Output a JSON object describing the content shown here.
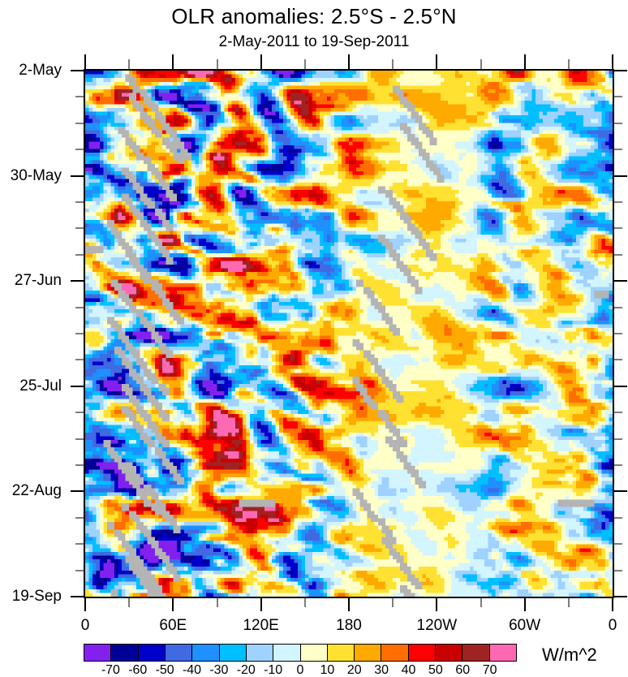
{
  "title": "OLR anomalies: 2.5°S - 2.5°N",
  "subtitle": "2-May-2011 to 19-Sep-2011",
  "chart_data": {
    "type": "heatmap",
    "subtype": "hovmoller-time-longitude-raster",
    "title": "OLR anomalies: 2.5°S - 2.5°N",
    "subtitle": "2-May-2011 to 19-Sep-2011",
    "x_axis": {
      "kind": "longitude",
      "tick_labels": [
        "0",
        "60E",
        "120E",
        "180",
        "120W",
        "60W",
        "0"
      ],
      "tick_degrees": [
        0,
        60,
        120,
        180,
        240,
        300,
        360
      ],
      "minor_step_deg": 30,
      "range_deg": [
        0,
        360
      ]
    },
    "y_axis": {
      "kind": "time",
      "tick_labels": [
        "2-May",
        "30-May",
        "27-Jun",
        "25-Jul",
        "22-Aug",
        "19-Sep"
      ],
      "tick_days": [
        0,
        28,
        56,
        84,
        112,
        140
      ],
      "minor_step_days": 7,
      "range_days": [
        0,
        140
      ],
      "direction": "time increases downward"
    },
    "colorbar": {
      "unit": "W/m^2",
      "levels": [
        -70,
        -60,
        -50,
        -40,
        -30,
        -20,
        -10,
        0,
        10,
        20,
        30,
        40,
        50,
        60,
        70
      ],
      "colors": [
        "#8220F0",
        "#000096",
        "#0000CD",
        "#4169E1",
        "#1E90FF",
        "#00BFFF",
        "#A0D2FF",
        "#D2F5FF",
        "#FFFFC8",
        "#FFE132",
        "#FFAA00",
        "#FF6E00",
        "#FF0000",
        "#C80000",
        "#A02323",
        "#FF69B4"
      ]
    },
    "description": "Time-longitude (Hovmoller) raster of equatorial OLR anomalies at 2.5 deg x 1 day resolution. Strong alternating negative (blue/purple, enhanced convection) and positive (orange/red/brown) anomalies over the Indian Ocean and western Pacific (0-180E); weak, mostly faint positive anomalies over the central/eastern Pacific (180-100W); a persistent active band near 60W; diagonal gray staircase streaks mark missing satellite swath data.",
    "field": {
      "grid": {
        "nx": 144,
        "nt": 141,
        "lon_step_deg": 2.5,
        "time_step_days": 1
      },
      "seed": 7,
      "octaves": [
        {
          "sx": 9,
          "st": 6.5,
          "amp": 1.1
        },
        {
          "sx": 6,
          "st": 3.2,
          "amp": 0.55
        },
        {
          "sx": 3,
          "st": 1.6,
          "amp": 0.3
        }
      ],
      "drift_cells_per_day": 0.5,
      "amplitude_envelope": [
        [
          0,
          55
        ],
        [
          20,
          62
        ],
        [
          50,
          72
        ],
        [
          90,
          72
        ],
        [
          120,
          62
        ],
        [
          150,
          55
        ],
        [
          180,
          38
        ],
        [
          205,
          20
        ],
        [
          235,
          16
        ],
        [
          260,
          20
        ],
        [
          280,
          45
        ],
        [
          295,
          48
        ],
        [
          310,
          26
        ],
        [
          330,
          36
        ],
        [
          345,
          48
        ],
        [
          360,
          55
        ]
      ],
      "bias_envelope": [
        [
          0,
          0
        ],
        [
          150,
          0
        ],
        [
          190,
          6
        ],
        [
          250,
          7
        ],
        [
          300,
          2
        ],
        [
          330,
          3
        ],
        [
          360,
          0
        ]
      ],
      "positive_scale": 0.9,
      "missing_swaths": {
        "color": "#B4B4B4",
        "diagonal_clusters": [
          {
            "lon_start_deg": 4,
            "day_start": 0,
            "period_days": 8.2,
            "count": 18,
            "steps": 11,
            "lon_jitter_deg": 28
          },
          {
            "lon_start_deg": 170,
            "day_start": 2,
            "period_days": 13.7,
            "count": 11,
            "steps": 9,
            "lon_jitter_deg": 45
          }
        ],
        "horizontal_bars": [
          {
            "lon_deg": 104,
            "day": 115,
            "width_deg": 24
          },
          {
            "lon_deg": 322,
            "day": 115,
            "width_deg": 26
          },
          {
            "lon_deg": 0,
            "day": 47,
            "width_deg": 13
          },
          {
            "lon_deg": 348,
            "day": 59,
            "width_deg": 10
          }
        ]
      }
    }
  }
}
